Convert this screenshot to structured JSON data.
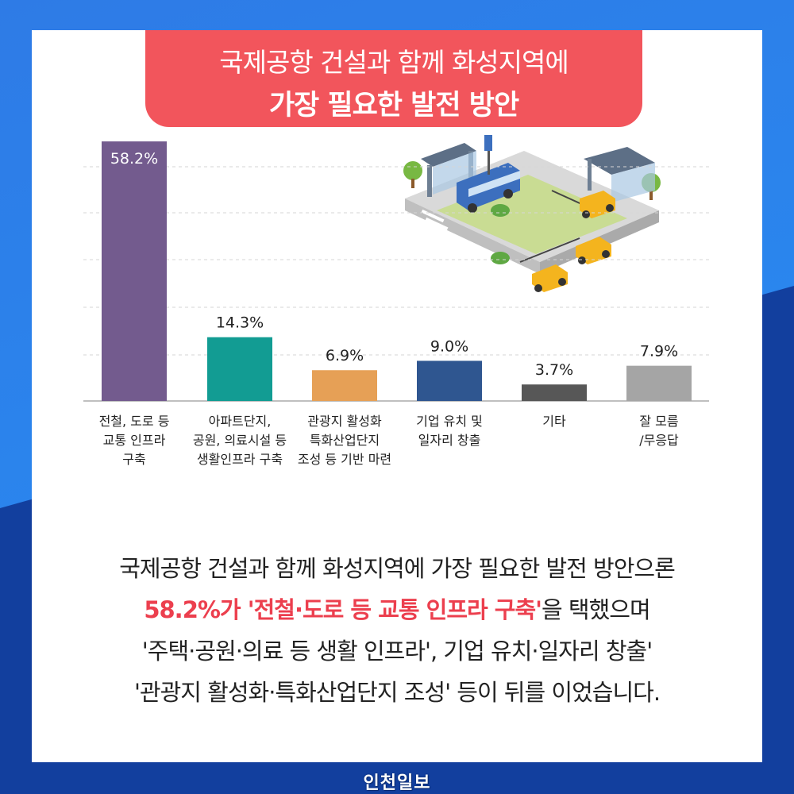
{
  "title": {
    "line1": "국제공항 건설과 함께 화성지역에",
    "line2": "가장 필요한 발전 방안"
  },
  "chart_data": {
    "type": "bar",
    "categories": [
      [
        "전철, 도로 등",
        "교통 인프라",
        "구축"
      ],
      [
        "아파트단지,",
        "공원, 의료시설 등",
        "생활인프라 구축"
      ],
      [
        "관광지 활성화",
        "특화산업단지",
        "조성 등 기반 마련"
      ],
      [
        "기업 유치 및",
        "일자리 창출"
      ],
      [
        "기타"
      ],
      [
        "잘 모름",
        "/무응답"
      ]
    ],
    "values": [
      58.2,
      14.3,
      6.9,
      9.0,
      3.7,
      7.9
    ],
    "value_labels": [
      "58.2%",
      "14.3%",
      "6.9%",
      "9.0%",
      "3.7%",
      "7.9%"
    ],
    "colors": [
      "#735b8e",
      "#129c93",
      "#e6a056",
      "#2f5690",
      "#575757",
      "#a5a5a5"
    ],
    "ylim": [
      0,
      60
    ],
    "grid": true,
    "title": "",
    "xlabel": "",
    "ylabel": ""
  },
  "summary": {
    "line1": "국제공항 건설과 함께 화성지역에 가장 필요한 발전 방안으론",
    "line2_highlight": "58.2%가 '전철·도로 등 교통 인프라 구축'",
    "line2_rest": "을 택했으며",
    "line3": "'주택·공원·의료 등 생활 인프라', 기업 유치·일자리 창출'",
    "line4": "'관광지 활성화·특화산업단지 조성' 등이 뒤를 이었습니다."
  },
  "logo": "인천일보",
  "illustration": {
    "bus_stop_sign": "BUS STOP"
  }
}
